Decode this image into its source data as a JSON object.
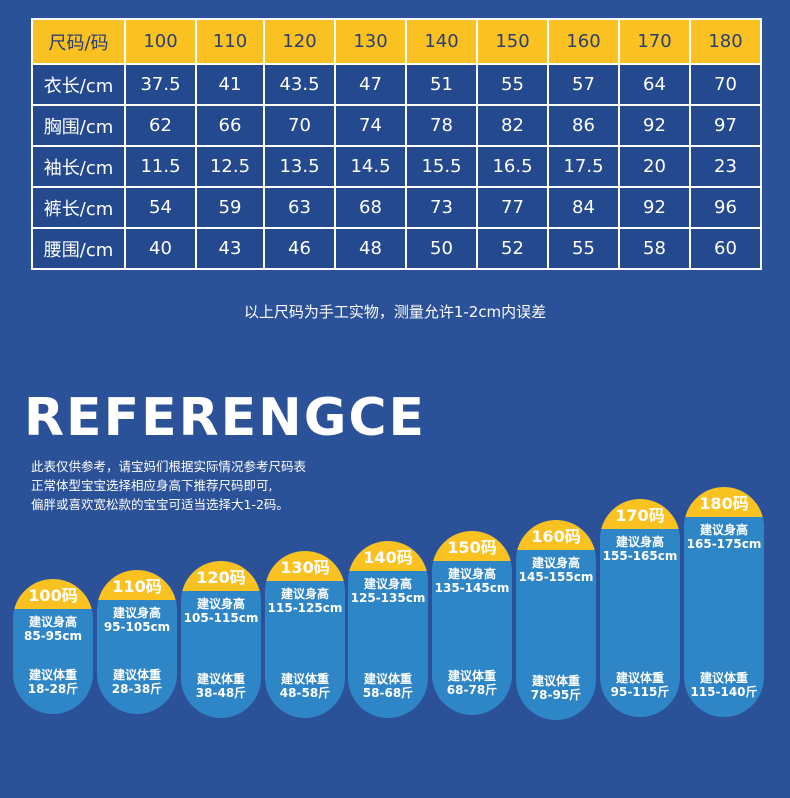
{
  "size_table": {
    "header": [
      "尺码/码",
      "100",
      "110",
      "120",
      "130",
      "140",
      "150",
      "160",
      "170",
      "180"
    ],
    "rows": [
      {
        "label": "衣长/cm",
        "values": [
          "37.5",
          "41",
          "43.5",
          "47",
          "51",
          "55",
          "57",
          "64",
          "70"
        ]
      },
      {
        "label": "胸围/cm",
        "values": [
          "62",
          "66",
          "70",
          "74",
          "78",
          "82",
          "86",
          "92",
          "97"
        ]
      },
      {
        "label": "袖长/cm",
        "values": [
          "11.5",
          "12.5",
          "13.5",
          "14.5",
          "15.5",
          "16.5",
          "17.5",
          "20",
          "23"
        ]
      },
      {
        "label": "裤长/cm",
        "values": [
          "54",
          "59",
          "63",
          "68",
          "73",
          "77",
          "84",
          "92",
          "96"
        ]
      },
      {
        "label": "腰围/cm",
        "values": [
          "40",
          "43",
          "46",
          "48",
          "50",
          "52",
          "55",
          "58",
          "60"
        ]
      }
    ]
  },
  "note": "以上尺码为手工实物，测量允许1-2cm内误差",
  "reference": {
    "title": "REFERENGCE",
    "desc": [
      "此表仅供参考，请宝妈们根据实际情况参考尺码表",
      "正常体型宝宝选择相应身高下推荐尺码即可,",
      "偏胖或喜欢宽松款的宝宝可适当选择大1-2码。"
    ],
    "height_label": "建议身高",
    "weight_label": "建议体重",
    "sizes": [
      {
        "size": "100码",
        "height": "85-95cm",
        "weight": "18-28斤"
      },
      {
        "size": "110码",
        "height": "95-105cm",
        "weight": "28-38斤"
      },
      {
        "size": "120码",
        "height": "105-115cm",
        "weight": "38-48斤"
      },
      {
        "size": "130码",
        "height": "115-125cm",
        "weight": "48-58斤"
      },
      {
        "size": "140码",
        "height": "125-135cm",
        "weight": "58-68斤"
      },
      {
        "size": "150码",
        "height": "135-145cm",
        "weight": "68-78斤"
      },
      {
        "size": "160码",
        "height": "145-155cm",
        "weight": "78-95斤"
      },
      {
        "size": "170码",
        "height": "155-165cm",
        "weight": "95-115斤"
      },
      {
        "size": "180码",
        "height": "165-175cm",
        "weight": "115-140斤"
      }
    ]
  },
  "colors": {
    "background": "#2b5199",
    "accent": "#f9c221",
    "pill": "#2f86c7"
  }
}
